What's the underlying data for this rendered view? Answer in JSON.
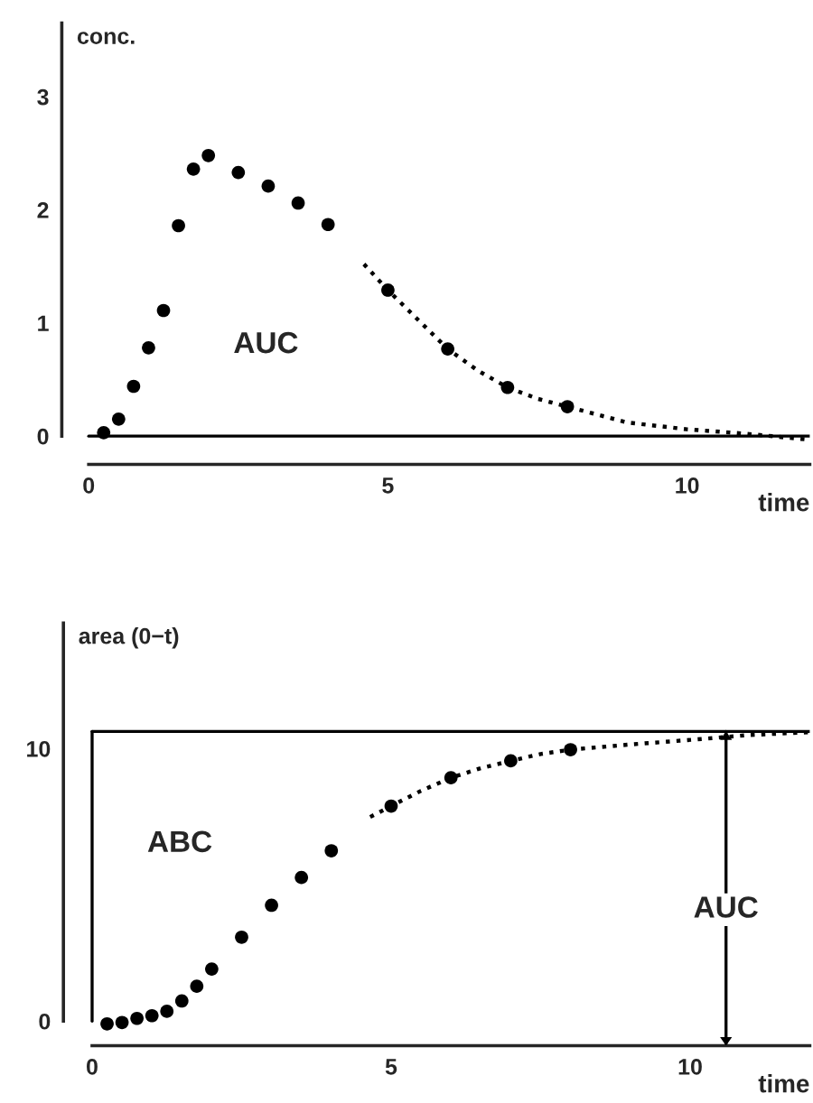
{
  "chart_data": [
    {
      "type": "scatter",
      "xlabel": "time",
      "ylabel": "conc.",
      "xlim": [
        -0.45,
        12.05
      ],
      "ylim": [
        -0.25,
        3.65
      ],
      "xticks": [
        0,
        5,
        10
      ],
      "yticks": [
        0,
        1,
        2,
        3
      ],
      "grid": false,
      "legend": false,
      "series": [
        {
          "marker": "circle",
          "color": "#000000",
          "x": [
            0.25,
            0.5,
            0.75,
            1,
            1.25,
            1.5,
            1.75,
            2,
            2.5,
            3,
            3.5,
            4,
            5,
            6,
            7,
            8
          ],
          "values": [
            0.03,
            0.15,
            0.44,
            0.78,
            1.11,
            1.86,
            2.36,
            2.48,
            2.33,
            2.21,
            2.06,
            1.87,
            1.29,
            0.77,
            0.43,
            0.26
          ]
        },
        {
          "type": "line",
          "line_style": "dotted",
          "color": "#000000",
          "x": [
            4.6,
            5,
            5.5,
            6,
            6.5,
            7,
            7.5,
            8,
            9,
            10,
            11,
            12
          ],
          "values": [
            1.52,
            1.29,
            1.03,
            0.77,
            0.58,
            0.43,
            0.33,
            0.26,
            0.12,
            0.06,
            0.02,
            -0.03
          ]
        }
      ],
      "ref_lines": [
        {
          "axis": "y",
          "value": 0,
          "color": "#000000",
          "line_style": "solid"
        }
      ],
      "annotations": [
        "AUC"
      ]
    },
    {
      "type": "scatter",
      "xlabel": "time",
      "ylabel": "area (0−t)",
      "xlim": [
        -0.48,
        12.0
      ],
      "ylim": [
        -0.9,
        14.6
      ],
      "xticks": [
        0,
        5,
        10
      ],
      "yticks": [
        0,
        10
      ],
      "grid": false,
      "legend": false,
      "series": [
        {
          "marker": "circle",
          "color": "#000000",
          "x": [
            0.25,
            0.5,
            0.75,
            1,
            1.25,
            1.5,
            1.75,
            2,
            2.5,
            3,
            3.5,
            4,
            5,
            6,
            7,
            8
          ],
          "values": [
            -0.1,
            -0.05,
            0.1,
            0.2,
            0.36,
            0.74,
            1.28,
            1.91,
            3.08,
            4.25,
            5.27,
            6.25,
            7.89,
            8.93,
            9.55,
            9.96
          ]
        },
        {
          "type": "line",
          "line_style": "dotted",
          "color": "#000000",
          "x": [
            4.65,
            5,
            5.5,
            6,
            6.5,
            7,
            7.5,
            8,
            9,
            10.25,
            11,
            12
          ],
          "values": [
            7.49,
            7.89,
            8.45,
            8.93,
            9.28,
            9.55,
            9.8,
            9.96,
            10.15,
            10.36,
            10.5,
            10.6
          ]
        }
      ],
      "ref_lines": [
        {
          "axis": "y",
          "value": 10.63,
          "color": "#000000",
          "line_style": "solid"
        },
        {
          "axis": "x",
          "value": 0,
          "color": "#000000",
          "line_style": "solid"
        },
        {
          "axis": "x",
          "value": 10.6,
          "color": "#000000",
          "line_style": "solid",
          "label": "AUC"
        }
      ],
      "annotations": [
        "ABC"
      ]
    }
  ]
}
